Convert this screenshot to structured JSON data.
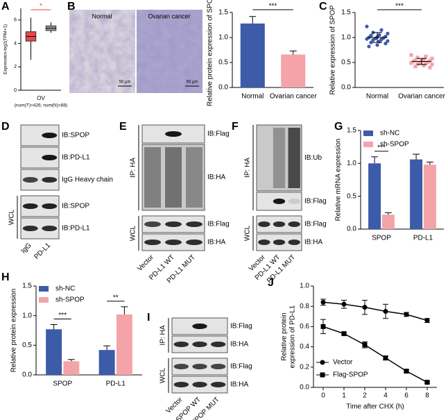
{
  "chart_data": [
    {
      "panel": "A",
      "type": "box",
      "ylabel": "Expression-log2(TPM+1)",
      "categories": [
        "OV"
      ],
      "subtitle": "(num(T)=426; num(N)=88)",
      "ylim": [
        0,
        7
      ],
      "yticks": [
        0,
        2,
        4,
        6
      ],
      "boxes": [
        {
          "color": "#e8474c",
          "whisker_low": 2.6,
          "q1": 4.2,
          "median": 4.6,
          "q3": 5.0,
          "whisker_high": 6.2
        },
        {
          "color": "#999999",
          "whisker_low": 4.9,
          "q1": 5.1,
          "median": 5.3,
          "q3": 5.5,
          "whisker_high": 5.8
        }
      ],
      "sig": "*",
      "sig_color": "#e8474c"
    },
    {
      "panel": "B",
      "type": "bar",
      "ylabel": "Relative protein expression of SPOP",
      "categories": [
        "Normal",
        "Ovarian cancer"
      ],
      "values": [
        1.28,
        0.66
      ],
      "errors": [
        0.14,
        0.07
      ],
      "colors": [
        "#3c5ba8",
        "#f4a4a9"
      ],
      "ylim": [
        0,
        1.5
      ],
      "yticks": [
        {
          "value": 0,
          "label": "0.0"
        },
        0.5,
        {
          "value": 1,
          "label": "1.0"
        },
        1.5
      ],
      "sig": "***"
    },
    {
      "panel": "C",
      "type": "strip",
      "ylabel": "Relative expression of SPOP",
      "categories": [
        "Normal",
        "Ovarian cancer"
      ],
      "points": [
        [
          1.22,
          1.15,
          1.1,
          1.08,
          1.05,
          1.04,
          1.02,
          1.01,
          1.0,
          0.99,
          0.98,
          0.97,
          0.96,
          0.95,
          0.93,
          0.92,
          0.9,
          0.88,
          0.85,
          0.82
        ],
        [
          0.65,
          0.62,
          0.6,
          0.58,
          0.56,
          0.55,
          0.54,
          0.53,
          0.52,
          0.51,
          0.5,
          0.49,
          0.48,
          0.47,
          0.46,
          0.44,
          0.42,
          0.4
        ]
      ],
      "means": [
        1.0,
        0.52
      ],
      "sds": [
        0.1,
        0.06
      ],
      "colors": [
        "#3c5ba8",
        "#f4a4a9"
      ],
      "markers": [
        "circle",
        "square"
      ],
      "ylim": [
        0,
        1.5
      ],
      "yticks": [
        {
          "value": 0,
          "label": "0.0"
        },
        0.5,
        {
          "value": 1,
          "label": "1.0"
        },
        1.5
      ],
      "sig": "***"
    },
    {
      "panel": "G",
      "type": "bar",
      "ylabel": "Relative mRNA expression",
      "categories": [
        "SPOP",
        "PD-L1"
      ],
      "series": [
        {
          "name": "sh-NC",
          "color": "#3c5ba8",
          "values": [
            1.0,
            1.06
          ],
          "errors": [
            0.1,
            0.08
          ]
        },
        {
          "name": "sh-SPOP",
          "color": "#f4a4a9",
          "values": [
            0.22,
            0.98
          ],
          "errors": [
            0.03,
            0.04
          ]
        }
      ],
      "sig": [
        "***",
        null
      ],
      "legend": "upper left",
      "ylim": [
        0,
        1.5
      ],
      "yticks": [
        {
          "value": 0,
          "label": "0.0"
        },
        0.5,
        {
          "value": 1,
          "label": "1.0"
        },
        1.5
      ]
    },
    {
      "panel": "H",
      "type": "bar",
      "ylabel": "Relative protein expression",
      "categories": [
        "SPOP",
        "PD-L1"
      ],
      "series": [
        {
          "name": "sh-NC",
          "color": "#3c5ba8",
          "values": [
            0.77,
            0.42
          ],
          "errors": [
            0.08,
            0.07
          ]
        },
        {
          "name": "sh-SPOP",
          "color": "#f4a4a9",
          "values": [
            0.23,
            1.02
          ],
          "errors": [
            0.03,
            0.13
          ]
        }
      ],
      "sig": [
        "***",
        "**"
      ],
      "legend": "upper left",
      "ylim": [
        0,
        1.5
      ],
      "yticks": [
        {
          "value": 0,
          "label": "0.0"
        },
        0.5,
        {
          "value": 1,
          "label": "1.0"
        },
        1.5
      ]
    },
    {
      "panel": "J",
      "type": "line",
      "ylabel": [
        "Relative protein",
        "expression of PD-L1"
      ],
      "xlabel": "Time after CHX (h)",
      "categories": [
        "0",
        "1",
        "2",
        "4",
        "6",
        "8"
      ],
      "series": [
        {
          "name": "Vector",
          "color": "#000000",
          "marker": "circle",
          "values": [
            0.84,
            0.82,
            0.79,
            0.75,
            0.72,
            0.66
          ],
          "errors": [
            0.03,
            0.04,
            0.07,
            0.07,
            0.02,
            0.02
          ]
        },
        {
          "name": "Flag-SPOP",
          "color": "#000000",
          "marker": "square",
          "values": [
            0.6,
            0.53,
            0.42,
            0.29,
            0.16,
            0.05
          ],
          "errors": [
            0.07,
            0.01,
            0.03,
            0.02,
            0.01,
            0.01
          ]
        }
      ],
      "legend": "lower left",
      "ylim": [
        0,
        1
      ],
      "yticks": [
        {
          "value": 0,
          "label": "0.0"
        },
        0.2,
        0.4,
        0.6,
        0.8,
        {
          "value": 1,
          "label": "1.0"
        }
      ]
    }
  ],
  "micrographs": {
    "images": [
      {
        "label": "Normal",
        "scale": "50 µm"
      },
      {
        "label": "Ovarian cancer",
        "scale": "50 µm"
      }
    ]
  },
  "blots": [
    {
      "panel": "D",
      "sections": [
        {
          "rows": [
            "IB:SPOP",
            "IB:PD-L1",
            "IgG Heavy chain"
          ]
        },
        {
          "label": "WCL",
          "rows": [
            "IB:SPOP",
            "IB:PD-L1"
          ]
        }
      ],
      "lanes": [
        "IgG",
        "PD-L1"
      ]
    },
    {
      "panel": "E",
      "sections": [
        {
          "label": "IP: HA",
          "rows": [
            "IB:Flag",
            "IB:HA"
          ]
        },
        {
          "label": "WCL",
          "rows": [
            "IB:Flag",
            "IB:HA"
          ]
        }
      ],
      "lanes": [
        "Vector",
        "PD-L1 WT",
        "PD-L1 MUT"
      ]
    },
    {
      "panel": "F",
      "sections": [
        {
          "label": "IP: HA",
          "rows": [
            "IB:Ub",
            "IB:Flag"
          ]
        },
        {
          "label": "WCL",
          "rows": [
            "IB:Flag",
            "IB:HA"
          ]
        }
      ],
      "lanes": [
        "Vector",
        "PD-L1 WT",
        "PD-L1 MUT"
      ]
    },
    {
      "panel": "I",
      "sections": [
        {
          "label": "IP: HA",
          "rows": [
            "IB:Flag",
            "IB:HA"
          ]
        },
        {
          "label": "WCL",
          "rows": [
            "IB:Flag",
            "IB:HA"
          ]
        }
      ],
      "lanes": [
        "Vector",
        "SPOP WT",
        "SPOP MUT"
      ]
    }
  ]
}
